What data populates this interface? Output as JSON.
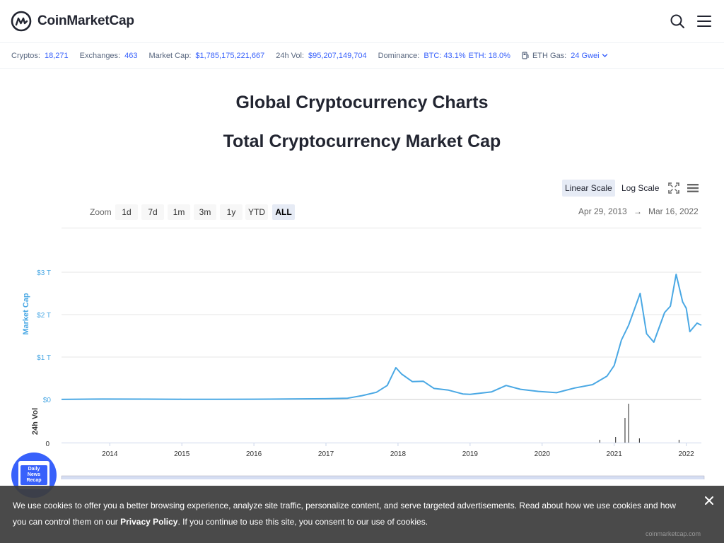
{
  "header": {
    "brand": "CoinMarketCap",
    "icons": [
      "search-icon",
      "menu-icon"
    ]
  },
  "stats": {
    "cryptos_label": "Cryptos:",
    "cryptos_value": "18,271",
    "exchanges_label": "Exchanges:",
    "exchanges_value": "463",
    "marketcap_label": "Market Cap:",
    "marketcap_value": "$1,785,175,221,667",
    "vol_label": "24h Vol:",
    "vol_value": "$95,207,149,704",
    "dominance_label": "Dominance:",
    "dominance_btc": "BTC: 43.1%",
    "dominance_eth": "ETH: 18.0%",
    "gas_label": "ETH Gas:",
    "gas_value": "24 Gwei"
  },
  "page": {
    "title": "Global Cryptocurrency Charts",
    "subtitle": "Total Cryptocurrency Market Cap"
  },
  "controls": {
    "linear_label": "Linear Scale",
    "log_label": "Log Scale",
    "zoom_label": "Zoom",
    "zoom_options": [
      "1d",
      "7d",
      "1m",
      "3m",
      "1y",
      "YTD",
      "ALL"
    ],
    "zoom_selected": "ALL",
    "range_from": "Apr 29, 2013",
    "range_arrow": "→",
    "range_to": "Mar 16, 2022"
  },
  "chart_data": {
    "type": "line",
    "title": "Total Cryptocurrency Market Cap",
    "ylabel": "Market Cap",
    "ylabel_vol": "24h Vol",
    "y_ticks": [
      "$0",
      "$1 T",
      "$2 T",
      "$3 T"
    ],
    "vol_tick": "0",
    "x_ticks": [
      "2014",
      "2015",
      "2016",
      "2017",
      "2018",
      "2019",
      "2020",
      "2021",
      "2022"
    ],
    "ylim": [
      0,
      3
    ],
    "y_unit": "trillion USD",
    "series": [
      {
        "values": [
          [
            2013.33,
            0.002
          ],
          [
            2013.9,
            0.01
          ],
          [
            2014.5,
            0.008
          ],
          [
            2015.0,
            0.005
          ],
          [
            2015.5,
            0.004
          ],
          [
            2016.0,
            0.007
          ],
          [
            2016.5,
            0.011
          ],
          [
            2017.0,
            0.018
          ],
          [
            2017.3,
            0.03
          ],
          [
            2017.5,
            0.09
          ],
          [
            2017.7,
            0.17
          ],
          [
            2017.85,
            0.33
          ],
          [
            2017.97,
            0.75
          ],
          [
            2018.05,
            0.6
          ],
          [
            2018.2,
            0.42
          ],
          [
            2018.35,
            0.43
          ],
          [
            2018.5,
            0.26
          ],
          [
            2018.7,
            0.22
          ],
          [
            2018.9,
            0.13
          ],
          [
            2019.0,
            0.12
          ],
          [
            2019.3,
            0.18
          ],
          [
            2019.5,
            0.33
          ],
          [
            2019.7,
            0.24
          ],
          [
            2019.95,
            0.19
          ],
          [
            2020.2,
            0.16
          ],
          [
            2020.45,
            0.27
          ],
          [
            2020.7,
            0.35
          ],
          [
            2020.9,
            0.55
          ],
          [
            2021.0,
            0.8
          ],
          [
            2021.1,
            1.4
          ],
          [
            2021.2,
            1.75
          ],
          [
            2021.36,
            2.5
          ],
          [
            2021.45,
            1.55
          ],
          [
            2021.55,
            1.35
          ],
          [
            2021.7,
            2.05
          ],
          [
            2021.78,
            2.2
          ],
          [
            2021.86,
            2.95
          ],
          [
            2021.95,
            2.3
          ],
          [
            2022.0,
            2.15
          ],
          [
            2022.05,
            1.6
          ],
          [
            2022.15,
            1.8
          ],
          [
            2022.21,
            1.75
          ]
        ]
      }
    ],
    "grid": true,
    "navigator": true,
    "watermark": "coinmarketcap.com"
  },
  "badge": {
    "text": "Daily News Recap"
  },
  "cookie": {
    "text1": "We use cookies to offer you a better browsing experience, analyze site traffic, personalize content, and serve targeted advertisements. Read about how we use cookies and how you can control them on our ",
    "link": "Privacy Policy",
    "text2": ". If you continue to use this site, you consent to our use of cookies."
  },
  "colors": {
    "brand_blue": "#3861fb",
    "line": "#4aa8e4",
    "text_dark": "#222531",
    "text_muted": "#58667e"
  }
}
